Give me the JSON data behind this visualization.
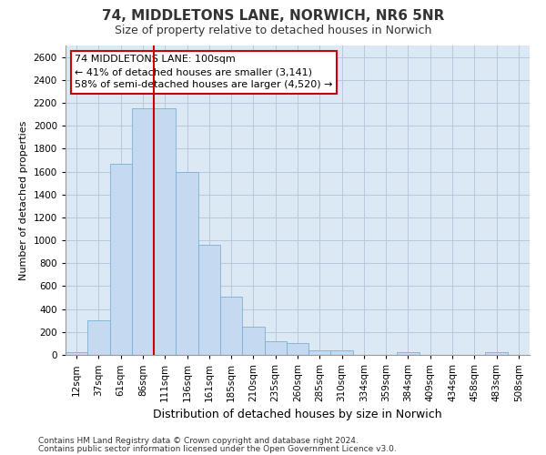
{
  "title1": "74, MIDDLETONS LANE, NORWICH, NR6 5NR",
  "title2": "Size of property relative to detached houses in Norwich",
  "xlabel": "Distribution of detached houses by size in Norwich",
  "ylabel": "Number of detached properties",
  "categories": [
    "12sqm",
    "37sqm",
    "61sqm",
    "86sqm",
    "111sqm",
    "136sqm",
    "161sqm",
    "185sqm",
    "210sqm",
    "235sqm",
    "260sqm",
    "285sqm",
    "310sqm",
    "334sqm",
    "359sqm",
    "384sqm",
    "409sqm",
    "434sqm",
    "458sqm",
    "483sqm",
    "508sqm"
  ],
  "values": [
    25,
    300,
    1670,
    2150,
    2150,
    1600,
    960,
    505,
    250,
    120,
    100,
    40,
    40,
    0,
    0,
    25,
    0,
    0,
    0,
    20,
    0
  ],
  "bar_color": "#c5d9f0",
  "bar_edge_color": "#7aafd4",
  "red_line_color": "#cc0000",
  "red_line_x": 3.5,
  "annotation_line1": "74 MIDDLETONS LANE: 100sqm",
  "annotation_line2": "← 41% of detached houses are smaller (3,141)",
  "annotation_line3": "58% of semi-detached houses are larger (4,520) →",
  "annotation_box_facecolor": "#ffffff",
  "annotation_box_edgecolor": "#cc0000",
  "ylim": [
    0,
    2700
  ],
  "yticks": [
    0,
    200,
    400,
    600,
    800,
    1000,
    1200,
    1400,
    1600,
    1800,
    2000,
    2200,
    2400,
    2600
  ],
  "footnote1": "Contains HM Land Registry data © Crown copyright and database right 2024.",
  "footnote2": "Contains public sector information licensed under the Open Government Licence v3.0.",
  "plot_bg_color": "#dce9f5",
  "grid_color": "#b8c8dc",
  "title1_fontsize": 11,
  "title2_fontsize": 9,
  "xlabel_fontsize": 9,
  "ylabel_fontsize": 8,
  "tick_fontsize": 7.5,
  "footnote_fontsize": 6.5
}
